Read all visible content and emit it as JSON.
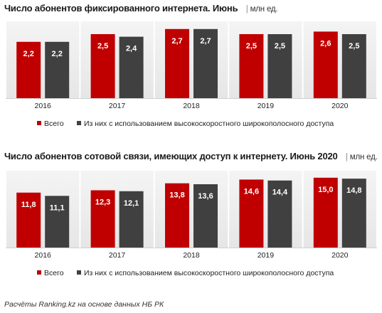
{
  "chart_data": [
    {
      "type": "bar",
      "title": "Число абонентов фиксированного интернета. Июнь",
      "unit": "млн ед.",
      "categories": [
        "2016",
        "2017",
        "2018",
        "2019",
        "2020"
      ],
      "series": [
        {
          "name": "Всего",
          "color": "#c00000",
          "values": [
            2.2,
            2.5,
            2.7,
            2.5,
            2.6
          ],
          "labels": [
            "2,2",
            "2,5",
            "2,7",
            "2,5",
            "2,6"
          ]
        },
        {
          "name": "Из них с использованием высокоскоростного широкополосного доступа",
          "color": "#404040",
          "values": [
            2.2,
            2.4,
            2.7,
            2.5,
            2.5
          ],
          "labels": [
            "2,2",
            "2,4",
            "2,7",
            "2,5",
            "2,5"
          ]
        }
      ],
      "ylim": [
        0,
        3.0
      ],
      "legend": "bottom"
    },
    {
      "type": "bar",
      "title": "Число абонентов сотовой связи, имеющих доступ к интернету. Июнь 2020",
      "unit": "млн ед.",
      "categories": [
        "2016",
        "2017",
        "2018",
        "2019",
        "2020"
      ],
      "series": [
        {
          "name": "Всего",
          "color": "#c00000",
          "values": [
            11.8,
            12.3,
            13.8,
            14.6,
            15.0
          ],
          "labels": [
            "11,8",
            "12,3",
            "13,8",
            "14,6",
            "15,0"
          ]
        },
        {
          "name": "Из них с использованием высокоскоростного широкополосного доступа",
          "color": "#404040",
          "values": [
            11.1,
            12.1,
            13.6,
            14.4,
            14.8
          ],
          "labels": [
            "11,1",
            "12,1",
            "13,6",
            "14,4",
            "14,8"
          ]
        }
      ],
      "ylim": [
        0,
        16.5
      ],
      "legend": "bottom"
    }
  ],
  "footnote": "Расчёты Ranking.kz на основе данных НБ РК"
}
